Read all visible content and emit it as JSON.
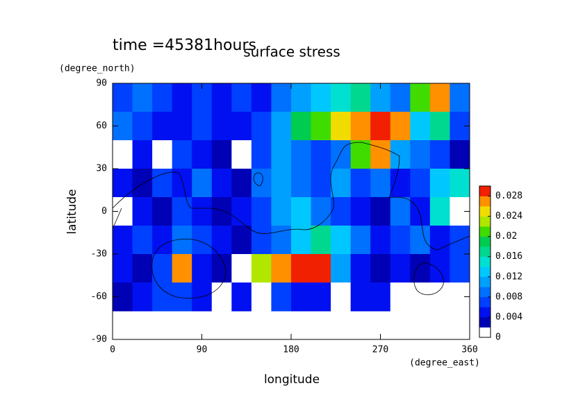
{
  "chart_data": {
    "type": "contour",
    "title": "surface stress",
    "subtitle": "time =45381hours",
    "x_label": "longitude",
    "x_unit": "(degree_east)",
    "y_label": "latitude",
    "y_unit": "(degree_north)",
    "x": [
      10,
      30,
      50,
      70,
      90,
      110,
      130,
      150,
      170,
      190,
      210,
      230,
      250,
      270,
      290,
      310,
      330,
      350
    ],
    "y": [
      80,
      60,
      40,
      20,
      0,
      -20,
      -40,
      -60
    ],
    "z": [
      [
        0.006,
        0.008,
        0.006,
        0.005,
        0.006,
        0.005,
        0.006,
        0.005,
        0.008,
        0.01,
        0.012,
        0.014,
        0.016,
        0.01,
        0.008,
        0.02,
        0.026,
        0.008
      ],
      [
        0.008,
        0.006,
        0.004,
        0.005,
        0.006,
        0.004,
        0.004,
        0.006,
        0.01,
        0.018,
        0.02,
        0.024,
        0.026,
        0.029,
        0.026,
        0.012,
        0.016,
        0.006
      ],
      [
        0.001,
        0.004,
        0.001,
        0.006,
        0.004,
        0.003,
        0.001,
        0.006,
        0.01,
        0.008,
        0.006,
        0.008,
        0.02,
        0.026,
        0.01,
        0.008,
        0.006,
        0.003
      ],
      [
        0.004,
        0.003,
        0.006,
        0.004,
        0.008,
        0.004,
        0.003,
        0.008,
        0.01,
        0.008,
        0.006,
        0.01,
        0.006,
        0.008,
        0.004,
        0.006,
        0.012,
        0.014
      ],
      [
        0.001,
        0.004,
        0.002,
        0.006,
        0.004,
        0.003,
        0.004,
        0.006,
        0.01,
        0.012,
        0.008,
        0.006,
        0.004,
        0.003,
        0.008,
        0.004,
        0.014,
        0.001
      ],
      [
        0.004,
        0.006,
        0.004,
        0.008,
        0.006,
        0.004,
        0.003,
        0.006,
        0.008,
        0.012,
        0.016,
        0.012,
        0.008,
        0.004,
        0.006,
        0.008,
        0.004,
        0.006
      ],
      [
        0.004,
        0.003,
        0.006,
        0.026,
        0.004,
        0.002,
        0.001,
        0.022,
        0.026,
        0.029,
        0.028,
        0.01,
        0.004,
        0.003,
        0.004,
        0.003,
        0.004,
        0.006
      ],
      [
        0.003,
        0.004,
        0.006,
        0.006,
        0.004,
        0.001,
        0.004,
        0.001,
        0.006,
        0.004,
        0.004,
        0.001,
        0.004,
        0.004,
        0.001,
        0.001,
        0.001,
        0.001
      ]
    ],
    "xlim": [
      0,
      360
    ],
    "ylim": [
      -90,
      90
    ],
    "xticks": [
      0,
      90,
      180,
      270,
      360
    ],
    "yticks": [
      -90,
      -60,
      -30,
      0,
      30,
      60,
      90
    ],
    "clim": [
      0,
      0.03
    ],
    "cticks": [
      0,
      0.004,
      0.008,
      0.012,
      0.016,
      0.02,
      0.024,
      0.028
    ],
    "colors": [
      "#ffffff",
      "#0000b4",
      "#0010f0",
      "#0040ff",
      "#0070ff",
      "#00a0ff",
      "#00c8ff",
      "#00e0d0",
      "#00d890",
      "#00cc50",
      "#40dc00",
      "#b0e600",
      "#f0dc00",
      "#ff9000",
      "#f02000"
    ]
  }
}
